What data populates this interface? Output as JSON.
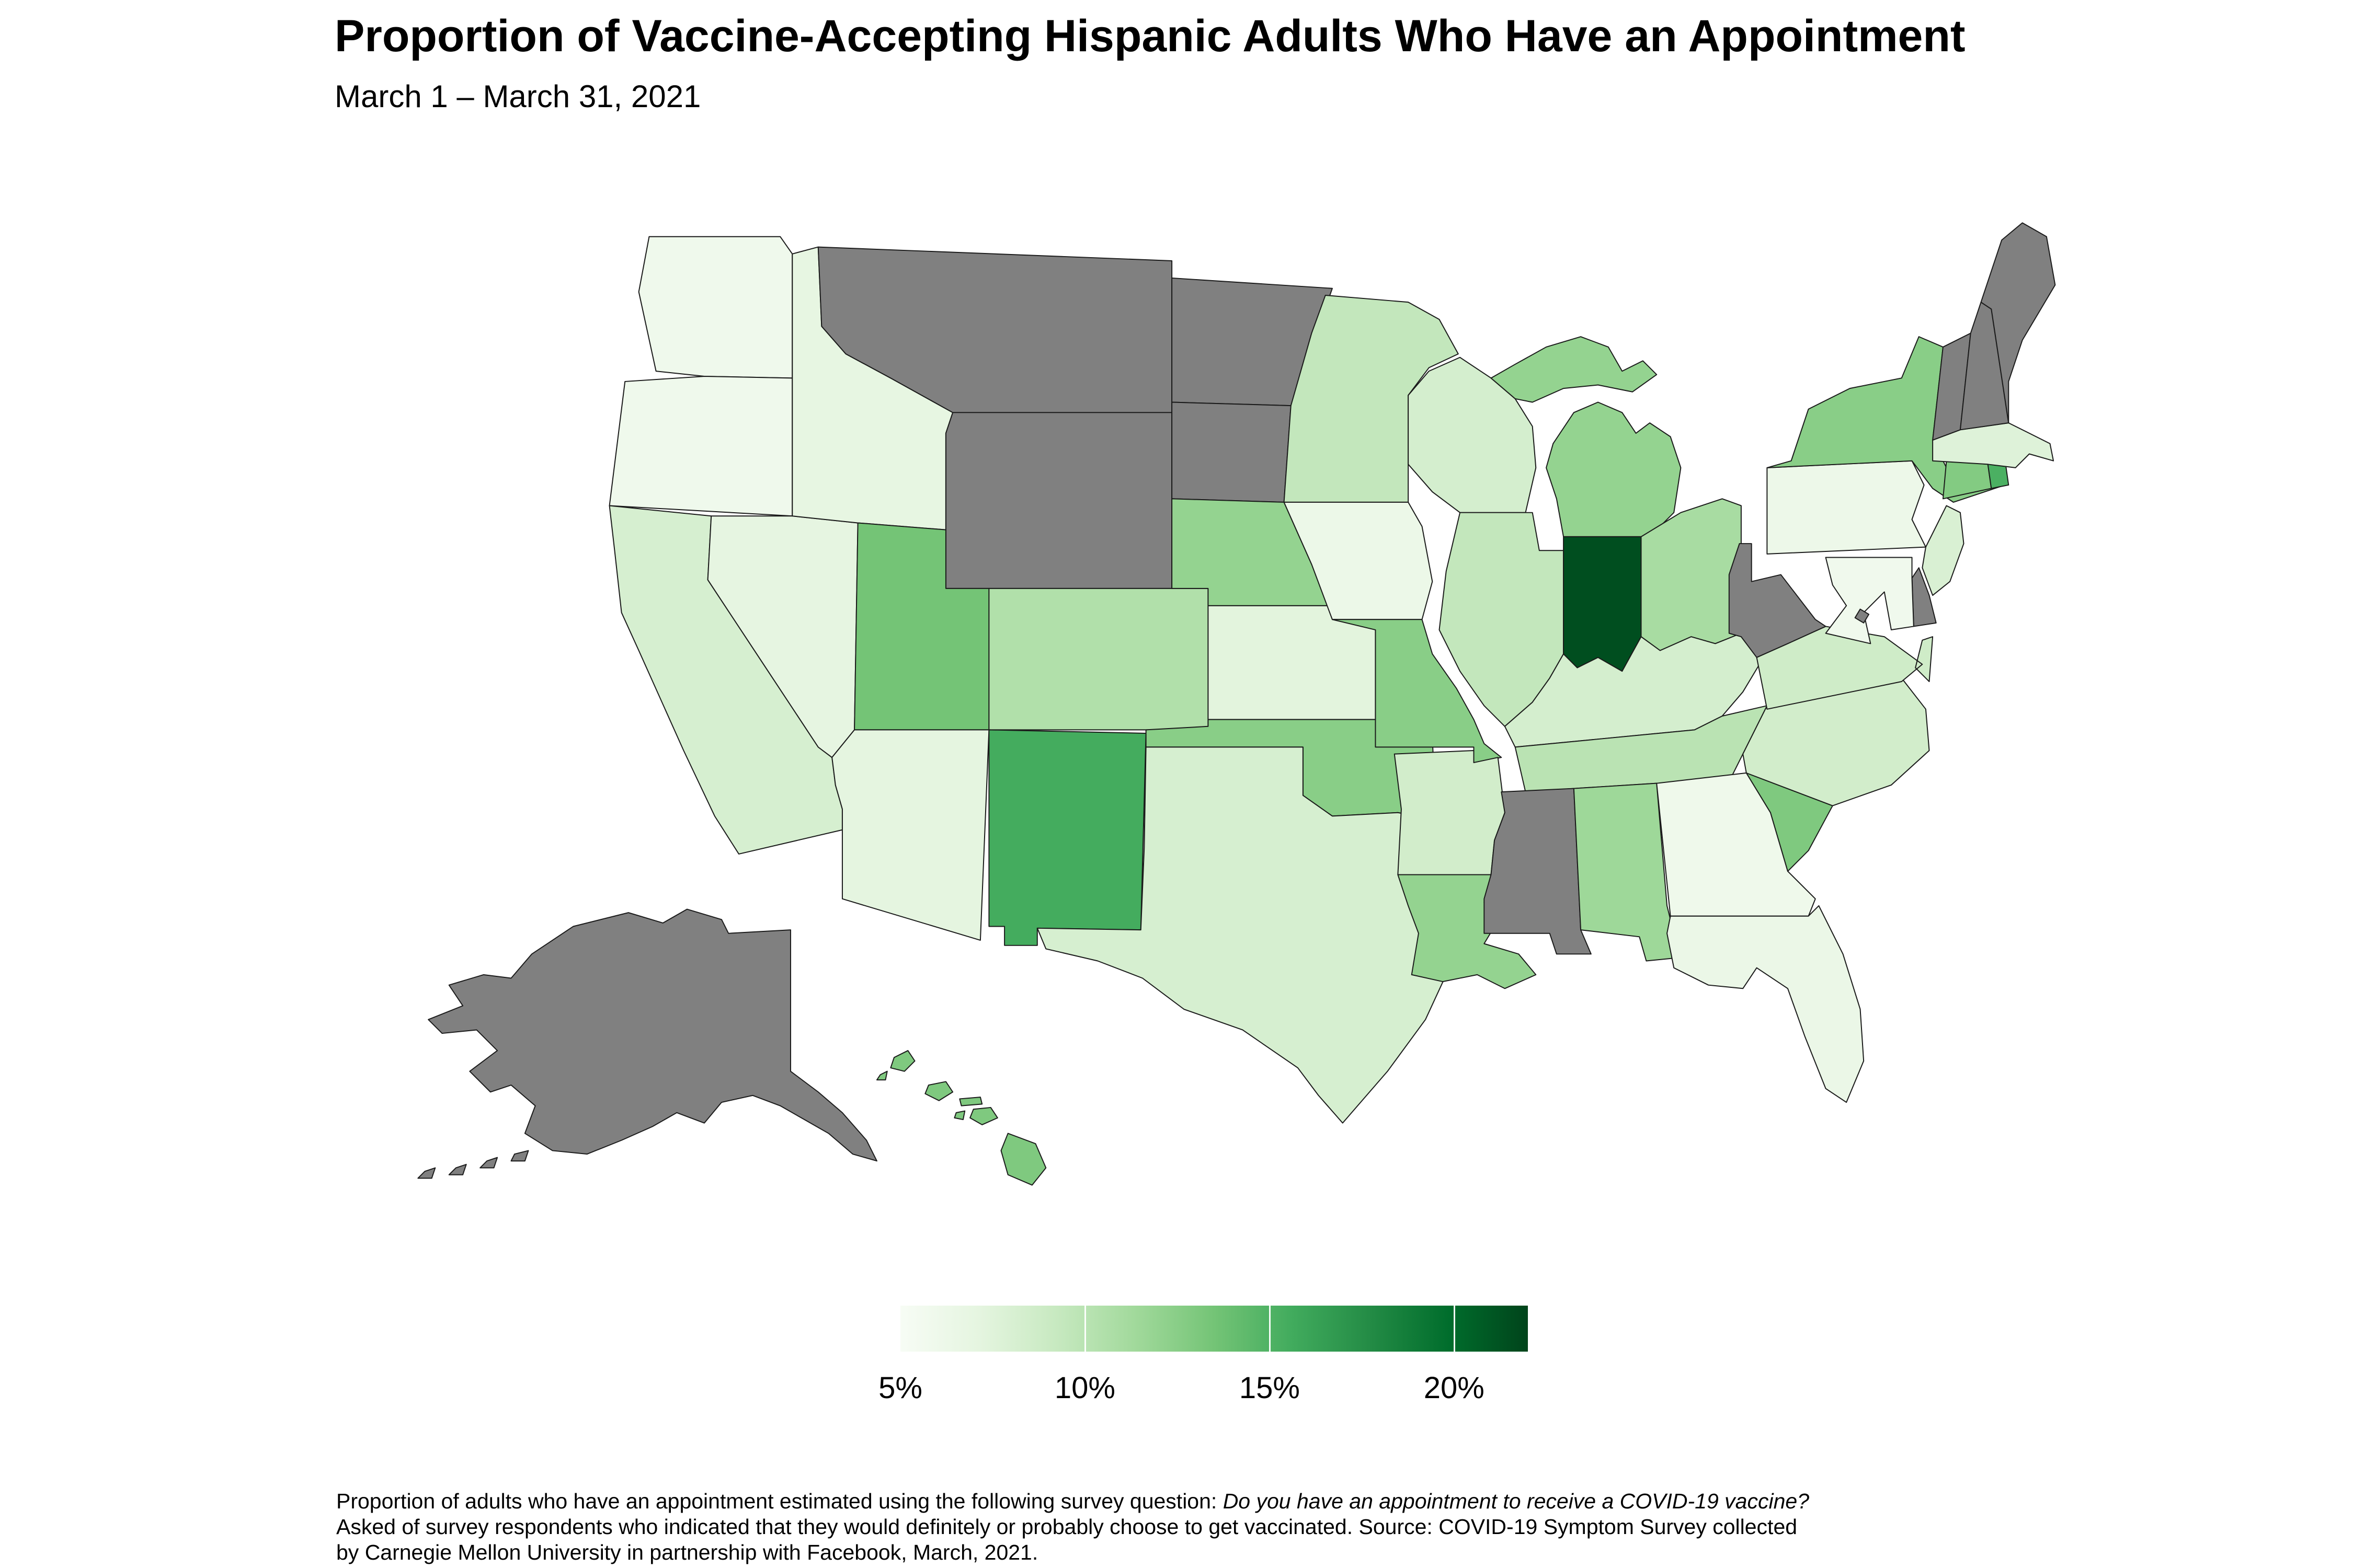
{
  "header": {
    "title": "Proportion of Vaccine-Accepting Hispanic Adults Who Have an Appointment",
    "subtitle": "March 1 – March 31, 2021"
  },
  "caption": {
    "line1_regular": "Proportion of adults who have an appointment estimated using the following survey question: ",
    "line1_italic": "Do you have an appointment to receive a COVID-19 vaccine?",
    "line2": "Asked of survey respondents who indicated that they would definitely or probably choose to get vaccinated. Source: COVID-19 Symptom Survey collected",
    "line3": "by Carnegie Mellon University in partnership with Facebook, March, 2021."
  },
  "legend": {
    "min": 5,
    "max": 22,
    "tick_values": [
      5,
      10,
      15,
      20
    ],
    "tick_labels": [
      "5%",
      "10%",
      "15%",
      "20%"
    ]
  },
  "chart_data": {
    "type": "choropleth",
    "region": "United States",
    "unit": "percent of vaccine-accepting Hispanic adults with a vaccine appointment",
    "title": "Proportion of Vaccine-Accepting Hispanic Adults Who Have an Appointment",
    "subtitle": "March 1 – March 31, 2021",
    "color_scale": {
      "type": "sequential-greens",
      "domain": [
        5,
        22
      ],
      "anchors": [
        "#f7fcf5",
        "#e5f5e0",
        "#c7e9c0",
        "#a1d99b",
        "#74c476",
        "#41ab5d",
        "#238b45",
        "#006d2c",
        "#00441b"
      ],
      "no_data_color": "#808080",
      "border_color": "#1a1a1a"
    },
    "states": [
      {
        "abbr": "WA",
        "name": "Washington",
        "value": 5.9
      },
      {
        "abbr": "OR",
        "name": "Oregon",
        "value": 5.9
      },
      {
        "abbr": "CA",
        "name": "California",
        "value": 8.2
      },
      {
        "abbr": "NV",
        "name": "Nevada",
        "value": 7.0
      },
      {
        "abbr": "ID",
        "name": "Idaho",
        "value": 6.9
      },
      {
        "abbr": "MT",
        "name": "Montana",
        "value": null
      },
      {
        "abbr": "WY",
        "name": "Wyoming",
        "value": null
      },
      {
        "abbr": "UT",
        "name": "Utah",
        "value": 13.5
      },
      {
        "abbr": "CO",
        "name": "Colorado",
        "value": 10.5
      },
      {
        "abbr": "AZ",
        "name": "Arizona",
        "value": 7.1
      },
      {
        "abbr": "NM",
        "name": "New Mexico",
        "value": 15.5
      },
      {
        "abbr": "ND",
        "name": "North Dakota",
        "value": null
      },
      {
        "abbr": "SD",
        "name": "South Dakota",
        "value": null
      },
      {
        "abbr": "NE",
        "name": "Nebraska",
        "value": 12.0
      },
      {
        "abbr": "KS",
        "name": "Kansas",
        "value": 7.3
      },
      {
        "abbr": "OK",
        "name": "Oklahoma",
        "value": 12.5
      },
      {
        "abbr": "TX",
        "name": "Texas",
        "value": 8.2
      },
      {
        "abbr": "MN",
        "name": "Minnesota",
        "value": 9.5
      },
      {
        "abbr": "IA",
        "name": "Iowa",
        "value": 6.3
      },
      {
        "abbr": "MO",
        "name": "Missouri",
        "value": 12.5
      },
      {
        "abbr": "AR",
        "name": "Arkansas",
        "value": 8.5
      },
      {
        "abbr": "LA",
        "name": "Louisiana",
        "value": 12.0
      },
      {
        "abbr": "WI",
        "name": "Wisconsin",
        "value": 8.3
      },
      {
        "abbr": "IL",
        "name": "Illinois",
        "value": 9.5
      },
      {
        "abbr": "MI",
        "name": "Michigan",
        "value": 12.0
      },
      {
        "abbr": "IN",
        "name": "Indiana",
        "value": 21.5
      },
      {
        "abbr": "OH",
        "name": "Ohio",
        "value": 11.0
      },
      {
        "abbr": "KY",
        "name": "Kentucky",
        "value": 8.3
      },
      {
        "abbr": "TN",
        "name": "Tennessee",
        "value": 10.0
      },
      {
        "abbr": "MS",
        "name": "Mississippi",
        "value": null
      },
      {
        "abbr": "AL",
        "name": "Alabama",
        "value": 11.5
      },
      {
        "abbr": "GA",
        "name": "Georgia",
        "value": 6.0
      },
      {
        "abbr": "FL",
        "name": "Florida",
        "value": 6.4
      },
      {
        "abbr": "SC",
        "name": "South Carolina",
        "value": 13.0
      },
      {
        "abbr": "NC",
        "name": "North Carolina",
        "value": 8.5
      },
      {
        "abbr": "VA",
        "name": "Virginia",
        "value": 8.7
      },
      {
        "abbr": "WV",
        "name": "West Virginia",
        "value": null
      },
      {
        "abbr": "PA",
        "name": "Pennsylvania",
        "value": 6.2
      },
      {
        "abbr": "NY",
        "name": "New York",
        "value": 12.5
      },
      {
        "abbr": "NJ",
        "name": "New Jersey",
        "value": 8.0
      },
      {
        "abbr": "DE",
        "name": "Delaware",
        "value": null
      },
      {
        "abbr": "MD",
        "name": "Maryland",
        "value": 5.8
      },
      {
        "abbr": "DC",
        "name": "District of Columbia",
        "value": null
      },
      {
        "abbr": "CT",
        "name": "Connecticut",
        "value": 12.8
      },
      {
        "abbr": "RI",
        "name": "Rhode Island",
        "value": 15.2
      },
      {
        "abbr": "MA",
        "name": "Massachusetts",
        "value": 7.6
      },
      {
        "abbr": "VT",
        "name": "Vermont",
        "value": null
      },
      {
        "abbr": "NH",
        "name": "New Hampshire",
        "value": null
      },
      {
        "abbr": "ME",
        "name": "Maine",
        "value": null
      },
      {
        "abbr": "AK",
        "name": "Alaska",
        "value": null
      },
      {
        "abbr": "HI",
        "name": "Hawaii",
        "value": 13.0
      }
    ]
  }
}
